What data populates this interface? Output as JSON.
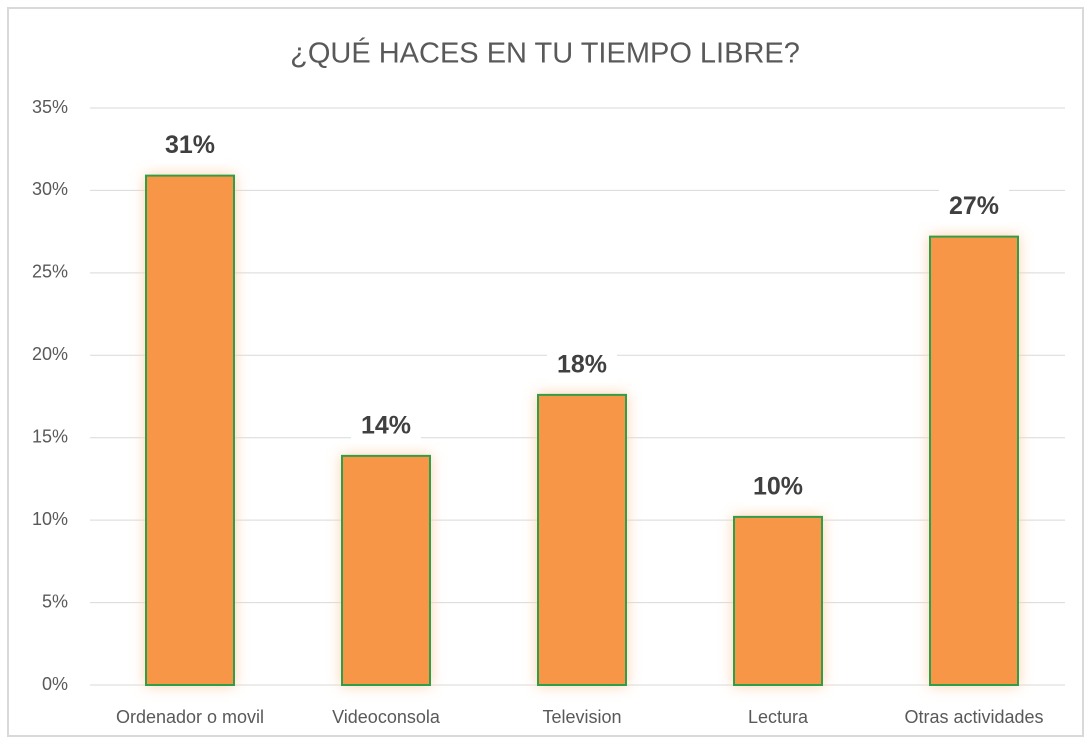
{
  "chart_data": {
    "type": "bar",
    "title": "¿QUÉ HACES EN TU TIEMPO LIBRE?",
    "categories": [
      "Ordenador o movil",
      "Videoconsola",
      "Television",
      "Lectura",
      "Otras actividades"
    ],
    "values": [
      30.9,
      13.9,
      17.6,
      10.2,
      27.2
    ],
    "value_labels": [
      "31%",
      "14%",
      "18%",
      "10%",
      "27%"
    ],
    "color": "#f79646",
    "edge_color": "#2e9e48",
    "ylim": [
      0,
      35
    ],
    "yticks": [
      {
        "value": 0,
        "label": "0%"
      },
      {
        "value": 5,
        "label": "5%"
      },
      {
        "value": 10,
        "label": "10%"
      },
      {
        "value": 15,
        "label": "15%"
      },
      {
        "value": 20,
        "label": "20%"
      },
      {
        "value": 25,
        "label": "25%"
      },
      {
        "value": 30,
        "label": "30%"
      },
      {
        "value": 35,
        "label": "35%"
      }
    ],
    "grid": true
  }
}
